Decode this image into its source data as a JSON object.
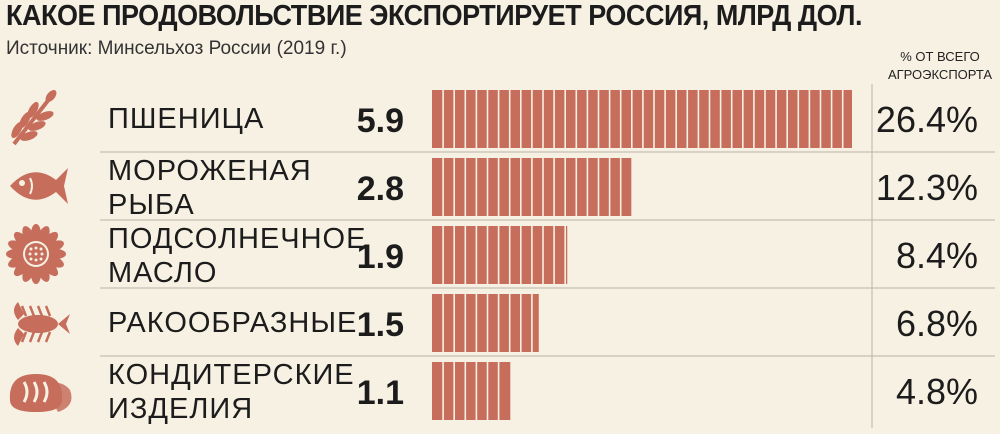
{
  "title": "КАКОЕ ПРОДОВОЛЬСТВИЕ ЭКСПОРТИРУЕТ РОССИЯ, МЛРД ДОЛ.",
  "subtitle": "Источник: Минсельхоз России (2019 г.)",
  "pct_header": [
    "% ОТ ВСЕГО",
    "АГРОЭКСПОРТА"
  ],
  "colors": {
    "bar": "#c66d5c",
    "icon": "#c66d5c",
    "divider": "#b9b3a8",
    "background": "#f7f1e3"
  },
  "chart_data": {
    "type": "bar",
    "orientation": "horizontal",
    "categories": [
      {
        "lines": [
          "ПШЕНИЦА"
        ],
        "icon": "wheat-icon"
      },
      {
        "lines": [
          "МОРОЖЕНАЯ",
          "РЫБА"
        ],
        "icon": "fish-icon"
      },
      {
        "lines": [
          "ПОДСОЛНЕЧНОЕ",
          "МАСЛО"
        ],
        "icon": "sunflower-icon"
      },
      {
        "lines": [
          "РАКООБРАЗНЫЕ"
        ],
        "icon": "crayfish-icon"
      },
      {
        "lines": [
          "КОНДИТЕРСКИЕ",
          "ИЗДЕЛИЯ"
        ],
        "icon": "bread-icon"
      }
    ],
    "values": [
      5.9,
      2.8,
      1.9,
      1.5,
      1.1
    ],
    "value_labels": [
      "5.9",
      "2.8",
      "1.9",
      "1.5",
      "1.1"
    ],
    "share_labels": [
      "26.4%",
      "12.3%",
      "8.4%",
      "6.8%",
      "4.8%"
    ],
    "xlim": [
      0,
      5.9
    ],
    "grid": false,
    "legend": "none"
  }
}
